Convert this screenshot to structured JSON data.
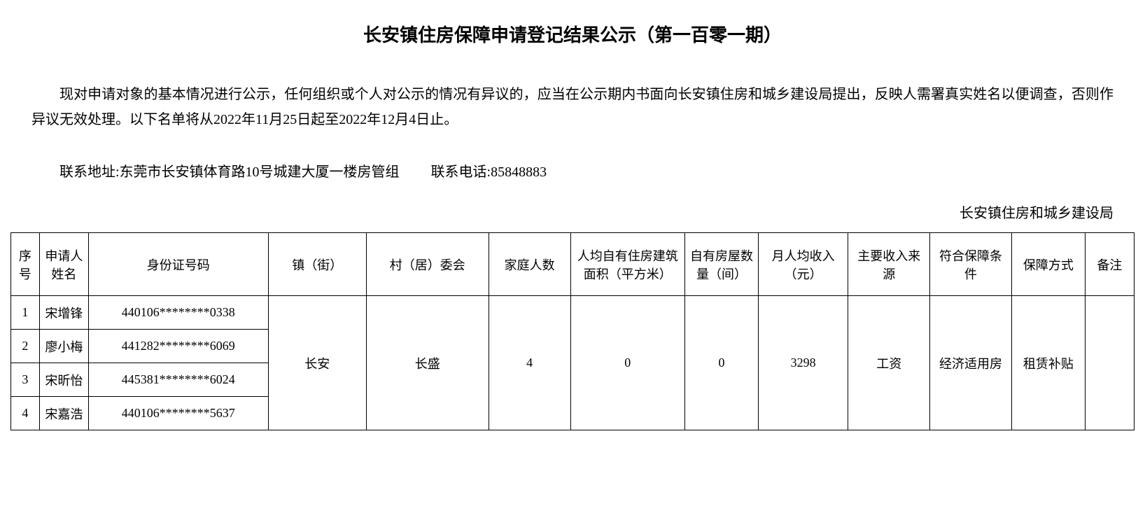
{
  "title": "长安镇住房保障申请登记结果公示（第一百零一期）",
  "intro": "现对申请对象的基本情况进行公示，任何组织或个人对公示的情况有异议的，应当在公示期内书面向长安镇住房和城乡建设局提出，反映人需署真实姓名以便调查，否则作异议无效处理。以下名单将从2022年11月25日起至2022年12月4日止。",
  "contact": {
    "address_label": "联系地址:",
    "address": "东莞市长安镇体育路10号城建大厦一楼房管组",
    "phone_label": "联系电话:",
    "phone": "85848883"
  },
  "signature": "长安镇住房和城乡建设局",
  "table": {
    "headers": {
      "seq": "序号",
      "name": "申请人姓名",
      "id": "身份证号码",
      "town": "镇（街）",
      "village": "村（居）委会",
      "family": "家庭人数",
      "area": "人均自有住房建筑面积（平方米）",
      "rooms": "自有房屋数量（间）",
      "income": "月人均收入（元）",
      "source": "主要收入来源",
      "condition": "符合保障条件",
      "method": "保障方式",
      "remark": "备注"
    },
    "rows": [
      {
        "seq": "1",
        "name": "宋增锋",
        "id": "440106********0338"
      },
      {
        "seq": "2",
        "name": "廖小梅",
        "id": "441282********6069"
      },
      {
        "seq": "3",
        "name": "宋昕怡",
        "id": "445381********6024"
      },
      {
        "seq": "4",
        "name": "宋嘉浩",
        "id": "440106********5637"
      }
    ],
    "merged": {
      "town": "长安",
      "village": "长盛",
      "family": "4",
      "area": "0",
      "rooms": "0",
      "income": "3298",
      "source": "工资",
      "condition": "经济适用房",
      "method": "租赁补贴",
      "remark": ""
    }
  }
}
